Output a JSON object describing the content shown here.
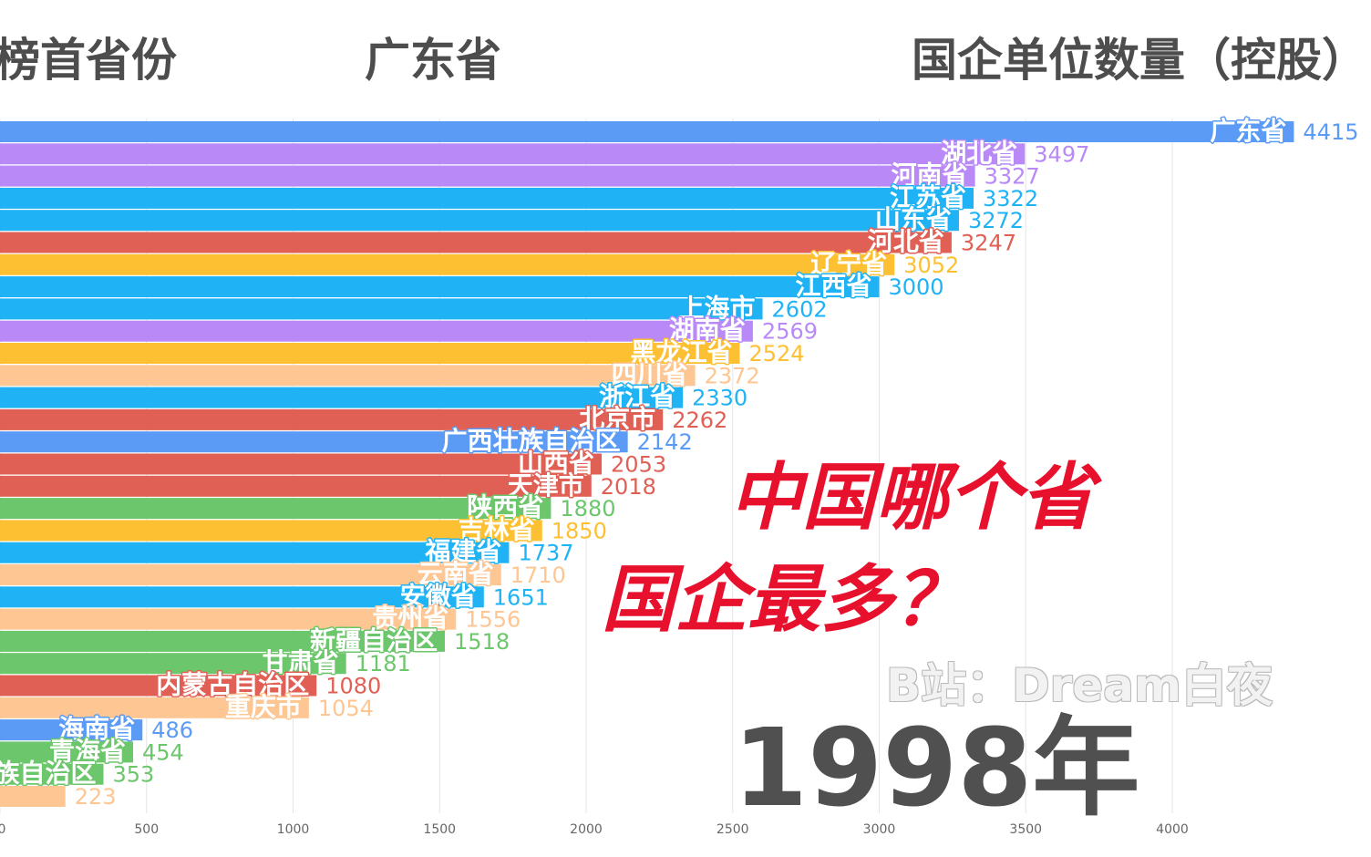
{
  "header": {
    "left": "榜首省份",
    "middle": "广东省",
    "right": "国企单位数量（控股）"
  },
  "overlay": {
    "title_line1": "中国哪个省",
    "title_line2": "国企最多？",
    "watermark": "B站：Dream白夜",
    "year": "1998年"
  },
  "colors": {
    "blue": "#5b9bf5",
    "purple": "#b98af7",
    "cyan": "#1fb3f5",
    "red": "#e06055",
    "gold": "#fdc032",
    "peach": "#fdc693",
    "green": "#6cc66b"
  },
  "chart_data": {
    "type": "bar",
    "orientation": "horizontal",
    "title": "国企单位数量（控股）",
    "xlim": [
      0,
      4500
    ],
    "x_ticks": [
      0,
      500,
      1000,
      1500,
      2000,
      2500,
      3000,
      3500,
      4000
    ],
    "grid": true,
    "categories": [
      "广东省",
      "湖北省",
      "河南省",
      "江苏省",
      "山东省",
      "河北省",
      "辽宁省",
      "江西省",
      "上海市",
      "湖南省",
      "黑龙江省",
      "四川省",
      "浙江省",
      "北京市",
      "广西壮族自治区",
      "山西省",
      "天津市",
      "陕西省",
      "吉林省",
      "福建省",
      "云南省",
      "安徽省",
      "贵州省",
      "新疆自治区",
      "甘肃省",
      "内蒙古自治区",
      "重庆市",
      "海南省",
      "青海省",
      "宁夏回族自治区",
      ""
    ],
    "values": [
      4415,
      3497,
      3327,
      3322,
      3272,
      3247,
      3052,
      3000,
      2602,
      2569,
      2524,
      2372,
      2330,
      2262,
      2142,
      2053,
      2018,
      1880,
      1850,
      1737,
      1710,
      1651,
      1556,
      1518,
      1181,
      1080,
      1054,
      486,
      454,
      353,
      223
    ],
    "bar_colors": [
      "blue",
      "purple",
      "purple",
      "cyan",
      "cyan",
      "red",
      "gold",
      "cyan",
      "cyan",
      "purple",
      "gold",
      "peach",
      "cyan",
      "red",
      "blue",
      "red",
      "red",
      "green",
      "gold",
      "cyan",
      "peach",
      "cyan",
      "peach",
      "green",
      "green",
      "red",
      "peach",
      "blue",
      "green",
      "green",
      "peach"
    ]
  }
}
